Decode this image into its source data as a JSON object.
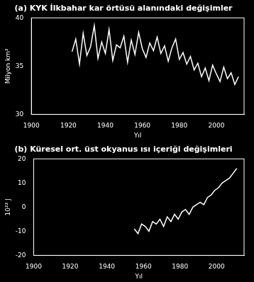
{
  "chart_data": [
    {
      "type": "line",
      "title": "(a) KYK İlkbahar kar örtüsü alanındaki değişimler",
      "xlabel": "Yıl",
      "ylabel": "Milyon km²",
      "color": "#ffffff",
      "grid": false,
      "x": [
        1922,
        1924,
        1926,
        1928,
        1930,
        1932,
        1934,
        1936,
        1938,
        1940,
        1942,
        1944,
        1946,
        1948,
        1950,
        1952,
        1954,
        1956,
        1958,
        1960,
        1962,
        1964,
        1966,
        1968,
        1970,
        1972,
        1974,
        1976,
        1978,
        1980,
        1982,
        1984,
        1986,
        1988,
        1990,
        1992,
        1994,
        1996,
        1998,
        2000,
        2002,
        2004,
        2006,
        2008,
        2010,
        2012
      ],
      "values": [
        36.5,
        37.8,
        35.2,
        38.4,
        36.1,
        37.0,
        39.2,
        35.8,
        37.5,
        36.3,
        38.8,
        35.6,
        37.2,
        36.9,
        38.1,
        35.4,
        37.7,
        36.2,
        38.5,
        36.8,
        35.9,
        37.4,
        36.6,
        38.0,
        36.3,
        37.1,
        35.5,
        36.9,
        37.8,
        35.7,
        36.4,
        35.2,
        36.0,
        34.6,
        35.3,
        33.9,
        34.8,
        33.5,
        35.1,
        34.2,
        33.4,
        34.9,
        33.7,
        34.3,
        33.1,
        33.9
      ],
      "xlim": [
        1900,
        2015
      ],
      "xticks": [
        1900,
        1920,
        1940,
        1960,
        1980,
        2000
      ],
      "ylim": [
        30,
        40
      ],
      "yticks": [
        30,
        35,
        40
      ]
    },
    {
      "type": "line",
      "title": "(b) Küresel ort. üst okyanus ısı içeriği değişimleri",
      "xlabel": "Yıl",
      "ylabel": "10²² J",
      "color": "#ffffff",
      "grid": false,
      "x": [
        1955,
        1957,
        1959,
        1961,
        1963,
        1965,
        1967,
        1969,
        1971,
        1973,
        1975,
        1977,
        1979,
        1981,
        1983,
        1985,
        1987,
        1989,
        1991,
        1993,
        1995,
        1997,
        1999,
        2001,
        2003,
        2005,
        2007,
        2009,
        2011
      ],
      "values": [
        -9,
        -11,
        -7,
        -8,
        -10,
        -6,
        -7,
        -5,
        -8,
        -4,
        -6,
        -3,
        -5,
        -2,
        -1,
        -3,
        0,
        1,
        2,
        1,
        4,
        5,
        7,
        8,
        10,
        11,
        12,
        14,
        16
      ],
      "xlim": [
        1900,
        2015
      ],
      "xticks": [
        1900,
        1920,
        1940,
        1960,
        1980,
        2000
      ],
      "ylim": [
        -20,
        20
      ],
      "yticks": [
        -20,
        -10,
        0,
        10,
        20
      ]
    }
  ]
}
